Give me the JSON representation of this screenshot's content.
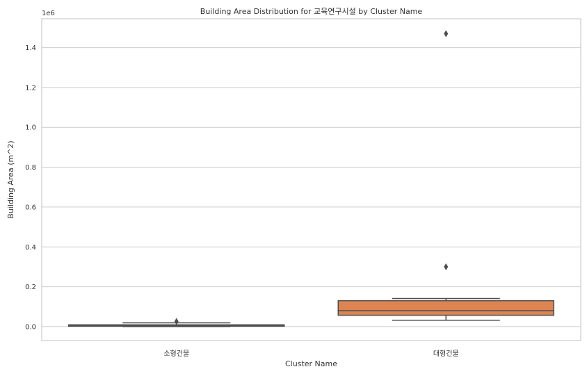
{
  "chart_data": {
    "type": "box",
    "title": "Building Area Distribution for 교육연구시설 by Cluster Name",
    "xlabel": "Cluster Name",
    "ylabel": "Building Area (m^2)",
    "y_multiplier_label": "1e6",
    "ylim": [
      -70000,
      1545000
    ],
    "yticks": [
      0.0,
      0.2,
      0.4,
      0.6,
      0.8,
      1.0,
      1.2,
      1.4
    ],
    "ytick_labels": [
      "0.0",
      "0.2",
      "0.4",
      "0.6",
      "0.8",
      "1.0",
      "1.2",
      "1.4"
    ],
    "ytick_scale": 1000000,
    "grid": true,
    "categories": [
      "소형건물",
      "대형건물"
    ],
    "boxes": [
      {
        "category": "소형건물",
        "color": "#4c72b0",
        "whisker_low": 0,
        "q1": 2000,
        "median": 5000,
        "q3": 9000,
        "whisker_high": 19000,
        "outliers": [
          26000
        ]
      },
      {
        "category": "대형건물",
        "color": "#dd8452",
        "whisker_low": 32000,
        "q1": 57000,
        "median": 80000,
        "q3": 130000,
        "whisker_high": 141000,
        "outliers": [
          300000,
          1470000
        ]
      }
    ]
  }
}
